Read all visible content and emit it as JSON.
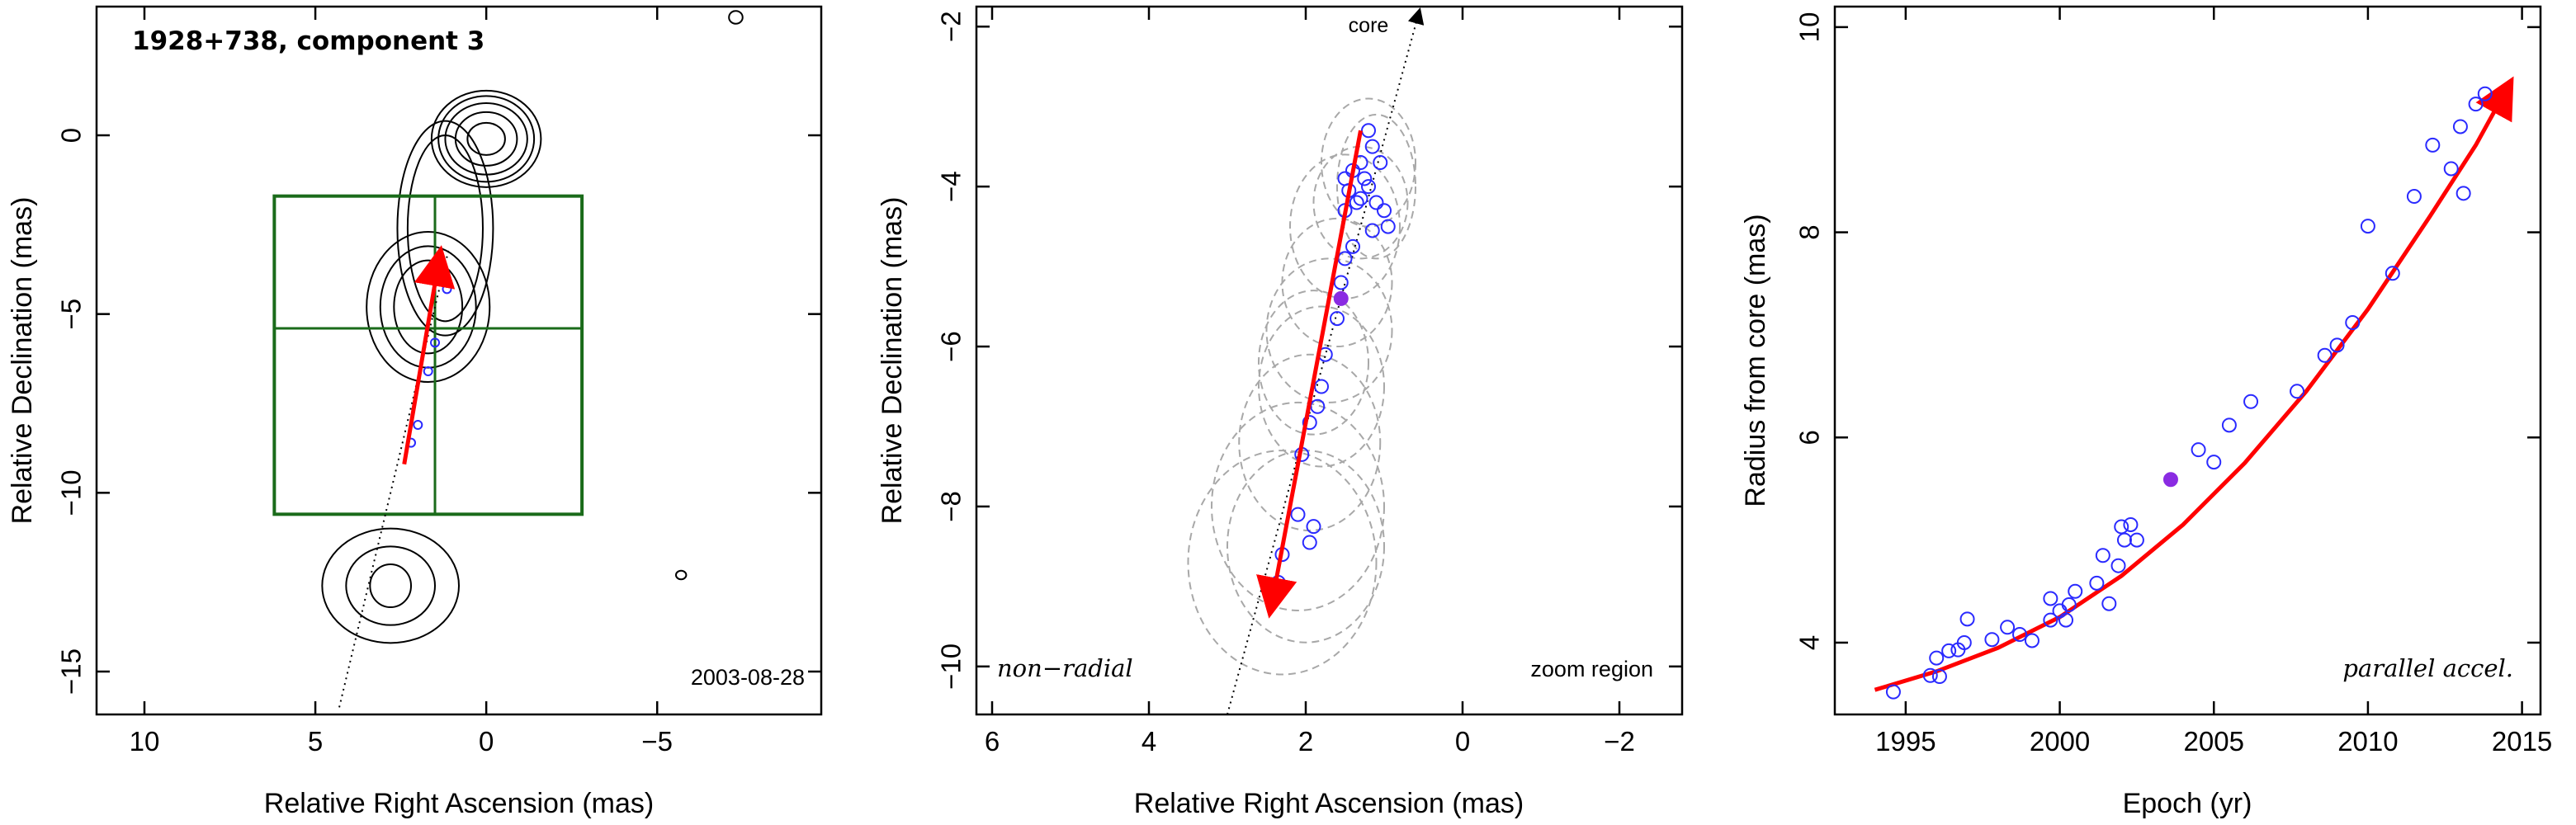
{
  "colors": {
    "contour": "#000000",
    "box": "#1a6b1a",
    "arrow": "#ff0000",
    "points": "#2a2aff",
    "highlight": "#8a2be2",
    "ellipses": "#a8a8a8"
  },
  "chart_data": [
    {
      "type": "scatter",
      "id": "panel-map",
      "title": "1928+738, component 3",
      "annotation": "2003-08-28",
      "xlabel": "Relative Right Ascension (mas)",
      "ylabel": "Relative Declination (mas)",
      "xlim": [
        11.4,
        -9.8
      ],
      "ylim": [
        -16.2,
        3.6
      ],
      "x_ticks": [
        10,
        5,
        0,
        -5
      ],
      "y_ticks": [
        0,
        -5,
        -10,
        -15
      ],
      "x_tick_labels": [
        "10",
        "5",
        "0",
        "−5"
      ],
      "y_tick_labels": [
        "0",
        "−5",
        "−10",
        "−15"
      ],
      "zoom_box": {
        "x": [
          6.2,
          -2.8
        ],
        "y": [
          -1.7,
          -10.6
        ],
        "cross": [
          1.5,
          -5.4
        ]
      },
      "jet_axis": [
        [
          4.3,
          -16.0
        ],
        [
          1.1,
          -3.2
        ]
      ],
      "arrow": {
        "from": [
          2.4,
          -9.2
        ],
        "to": [
          1.35,
          -3.3
        ]
      },
      "points": [
        [
          1.3,
          -3.6
        ],
        [
          1.25,
          -4.0
        ],
        [
          1.15,
          -4.3
        ],
        [
          1.5,
          -5.8
        ],
        [
          1.7,
          -6.6
        ],
        [
          2.0,
          -8.1
        ],
        [
          2.2,
          -8.6
        ]
      ],
      "contours": [
        {
          "cx": 0.0,
          "cy": -0.1,
          "levels": [
            [
              0.55,
              0.45
            ],
            [
              0.9,
              0.75
            ],
            [
              1.2,
              1.0
            ],
            [
              1.4,
              1.2
            ],
            [
              1.6,
              1.35
            ]
          ]
        },
        {
          "cx": 1.2,
          "cy": -2.6,
          "levels": [
            [
              1.1,
              2.6
            ],
            [
              1.4,
              3.0
            ]
          ]
        },
        {
          "cx": 1.7,
          "cy": -4.8,
          "levels": [
            [
              1.0,
              1.3
            ],
            [
              1.4,
              1.7
            ],
            [
              1.8,
              2.1
            ]
          ]
        },
        {
          "cx": 2.8,
          "cy": -12.6,
          "levels": [
            [
              0.6,
              0.6
            ],
            [
              1.3,
              1.1
            ],
            [
              2.0,
              1.6
            ]
          ]
        },
        {
          "cx": -5.7,
          "cy": -12.3,
          "levels": [
            [
              0.15,
              0.12
            ]
          ]
        },
        {
          "cx": -7.3,
          "cy": 3.3,
          "levels": [
            [
              0.2,
              0.18
            ]
          ]
        }
      ]
    },
    {
      "type": "scatter",
      "id": "panel-zoom",
      "xlabel": "Relative Right Ascension (mas)",
      "ylabel": "Relative Declination (mas)",
      "xlim": [
        6.2,
        -2.8
      ],
      "ylim": [
        -10.6,
        -1.75
      ],
      "x_ticks": [
        6,
        4,
        2,
        0,
        -2
      ],
      "y_ticks": [
        -2,
        -4,
        -6,
        -8,
        -10
      ],
      "x_tick_labels": [
        "6",
        "4",
        "2",
        "0",
        "−2"
      ],
      "y_tick_labels": [
        "−2",
        "−4",
        "−6",
        "−8",
        "−10"
      ],
      "labels": {
        "core": "core",
        "bottom_left": "non−radial",
        "bottom_right": "zoom region"
      },
      "jet_axis": [
        [
          3.0,
          -10.6
        ],
        [
          0.55,
          -1.8
        ]
      ],
      "arrow": {
        "from": [
          1.3,
          -3.3
        ],
        "to": [
          2.45,
          -9.3
        ]
      },
      "highlight_point": [
        1.55,
        -5.4
      ],
      "points": [
        [
          1.2,
          -3.3
        ],
        [
          1.15,
          -3.5
        ],
        [
          1.3,
          -3.7
        ],
        [
          1.05,
          -3.7
        ],
        [
          1.4,
          -3.8
        ],
        [
          1.25,
          -3.9
        ],
        [
          1.5,
          -3.9
        ],
        [
          1.2,
          -4.0
        ],
        [
          1.45,
          -4.05
        ],
        [
          1.3,
          -4.15
        ],
        [
          1.1,
          -4.2
        ],
        [
          1.0,
          -4.3
        ],
        [
          0.95,
          -4.5
        ],
        [
          1.35,
          -4.2
        ],
        [
          1.5,
          -4.3
        ],
        [
          1.15,
          -4.55
        ],
        [
          1.4,
          -4.75
        ],
        [
          1.5,
          -4.9
        ],
        [
          1.55,
          -5.2
        ],
        [
          1.6,
          -5.65
        ],
        [
          1.75,
          -6.1
        ],
        [
          1.8,
          -6.5
        ],
        [
          1.85,
          -6.75
        ],
        [
          1.95,
          -6.95
        ],
        [
          2.05,
          -7.35
        ],
        [
          2.1,
          -8.1
        ],
        [
          1.95,
          -8.45
        ],
        [
          2.3,
          -8.6
        ],
        [
          2.35,
          -8.95
        ],
        [
          2.45,
          -9.05
        ],
        [
          1.9,
          -8.25
        ]
      ],
      "ellipses": [
        [
          1.2,
          -3.7,
          0.6,
          0.8
        ],
        [
          1.3,
          -4.2,
          0.6,
          0.7
        ],
        [
          1.1,
          -4.0,
          0.5,
          0.9
        ],
        [
          1.5,
          -4.5,
          0.7,
          0.9
        ],
        [
          1.6,
          -5.2,
          0.7,
          0.8
        ],
        [
          1.7,
          -5.8,
          0.8,
          0.9
        ],
        [
          1.8,
          -6.5,
          0.8,
          1.0
        ],
        [
          1.95,
          -7.2,
          0.9,
          1.1
        ],
        [
          2.1,
          -8.0,
          1.1,
          1.3
        ],
        [
          2.3,
          -8.7,
          1.2,
          1.4
        ],
        [
          2.0,
          -8.5,
          1.0,
          1.2
        ],
        [
          1.9,
          -6.2,
          0.7,
          0.9
        ]
      ]
    },
    {
      "type": "scatter",
      "id": "panel-radius",
      "xlabel": "Epoch (yr)",
      "ylabel": "Radius from core (mas)",
      "xlim": [
        1992.7,
        2015.6
      ],
      "ylim": [
        3.3,
        10.2
      ],
      "x_ticks": [
        1995,
        2000,
        2005,
        2010,
        2015
      ],
      "y_ticks": [
        4,
        6,
        8,
        10
      ],
      "x_tick_labels": [
        "1995",
        "2000",
        "2005",
        "2010",
        "2015"
      ],
      "y_tick_labels": [
        "4",
        "6",
        "8",
        "10"
      ],
      "labels": {
        "bottom_right": "parallel accel."
      },
      "fit_curve": [
        [
          1994.0,
          3.54
        ],
        [
          1996.0,
          3.72
        ],
        [
          1998.0,
          3.95
        ],
        [
          2000.0,
          4.25
        ],
        [
          2002.0,
          4.65
        ],
        [
          2004.0,
          5.15
        ],
        [
          2006.0,
          5.75
        ],
        [
          2008.0,
          6.45
        ],
        [
          2010.0,
          7.25
        ],
        [
          2012.0,
          8.15
        ],
        [
          2013.5,
          8.85
        ],
        [
          2014.6,
          9.45
        ]
      ],
      "highlight_point": [
        2003.6,
        5.59
      ],
      "points": [
        [
          1994.6,
          3.52
        ],
        [
          1995.8,
          3.68
        ],
        [
          1996.1,
          3.67
        ],
        [
          1996.0,
          3.85
        ],
        [
          1996.4,
          3.92
        ],
        [
          1996.7,
          3.93
        ],
        [
          1996.9,
          4.0
        ],
        [
          1997.0,
          4.23
        ],
        [
          1997.8,
          4.03
        ],
        [
          1998.3,
          4.15
        ],
        [
          1998.7,
          4.08
        ],
        [
          1999.1,
          4.02
        ],
        [
          1999.7,
          4.43
        ],
        [
          1999.7,
          4.22
        ],
        [
          2000.0,
          4.31
        ],
        [
          2000.3,
          4.37
        ],
        [
          2000.2,
          4.22
        ],
        [
          2000.5,
          4.5
        ],
        [
          2001.2,
          4.58
        ],
        [
          2001.4,
          4.85
        ],
        [
          2001.6,
          4.38
        ],
        [
          2001.9,
          4.75
        ],
        [
          2002.0,
          5.13
        ],
        [
          2002.1,
          5.0
        ],
        [
          2002.3,
          5.15
        ],
        [
          2002.5,
          5.0
        ],
        [
          2004.5,
          5.88
        ],
        [
          2005.0,
          5.76
        ],
        [
          2005.5,
          6.12
        ],
        [
          2006.2,
          6.35
        ],
        [
          2007.7,
          6.45
        ],
        [
          2008.6,
          6.8
        ],
        [
          2009.0,
          6.9
        ],
        [
          2009.5,
          7.12
        ],
        [
          2010.0,
          8.06
        ],
        [
          2010.8,
          7.6
        ],
        [
          2011.5,
          8.35
        ],
        [
          2012.1,
          8.85
        ],
        [
          2012.7,
          8.62
        ],
        [
          2013.0,
          9.03
        ],
        [
          2013.1,
          8.38
        ],
        [
          2013.5,
          9.25
        ],
        [
          2013.8,
          9.35
        ]
      ]
    }
  ]
}
